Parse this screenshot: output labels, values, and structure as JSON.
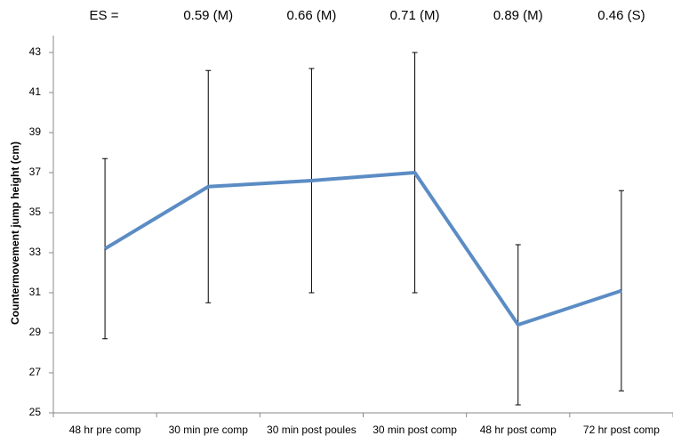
{
  "chart_data": {
    "type": "line",
    "y_label": "Countermovement jump height (cm)",
    "es_label": "ES =",
    "effect_sizes": [
      null,
      "0.59 (M)",
      "0.66 (M)",
      "0.71 (M)",
      "0.89 (M)",
      "0.46 (S)"
    ],
    "categories": [
      "48 hr pre comp",
      "30 min pre comp",
      "30 min post poules",
      "30 min post comp",
      "48 hr post comp",
      "72 hr post comp"
    ],
    "values": [
      33.2,
      36.3,
      36.6,
      37.0,
      29.4,
      31.1
    ],
    "errors": [
      4.5,
      5.8,
      5.6,
      6.0,
      4.0,
      5.0
    ],
    "color": "#5b8cc4",
    "ylim": [
      25,
      43
    ],
    "yticks": [
      25,
      27,
      29,
      31,
      33,
      35,
      37,
      39,
      41,
      43
    ],
    "grid": false
  }
}
